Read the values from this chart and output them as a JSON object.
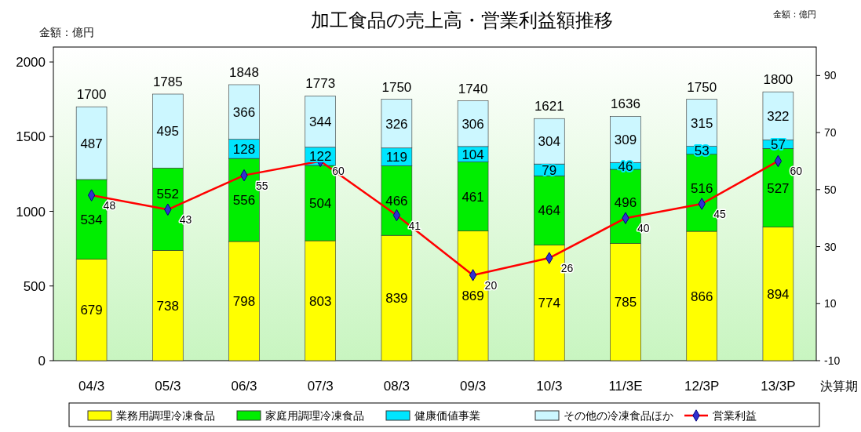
{
  "chart_data": {
    "type": "bar",
    "title": "加工食品の売上高・営業利益額推移",
    "ylabel": "金額：億円",
    "y2label": "金額：億円",
    "xlabel": "決算期",
    "categories": [
      "04/3",
      "05/3",
      "06/3",
      "07/3",
      "08/3",
      "09/3",
      "10/3",
      "11/3E",
      "12/3P",
      "13/3P"
    ],
    "stacked": true,
    "series": [
      {
        "name": "業務用調理冷凍食品",
        "color": "#ffff00",
        "values": [
          679,
          738,
          798,
          803,
          839,
          869,
          774,
          785,
          866,
          894
        ]
      },
      {
        "name": "家庭用調理冷凍食品",
        "color": "#00ee00",
        "values": [
          534,
          552,
          556,
          504,
          466,
          461,
          464,
          496,
          516,
          527
        ]
      },
      {
        "name": "健康価値事業",
        "color": "#00e5ff",
        "values": [
          null,
          null,
          128,
          122,
          119,
          104,
          79,
          46,
          53,
          57
        ]
      },
      {
        "name": "その他の冷凍食品ほか",
        "color": "#ccf7ff",
        "values": [
          487,
          495,
          366,
          344,
          326,
          306,
          304,
          309,
          315,
          322
        ]
      },
      {
        "name": "営業利益",
        "type": "line",
        "axis": "y2",
        "color": "#ff0000",
        "marker": "diamond",
        "values": [
          48,
          43,
          55,
          60,
          41,
          20,
          26,
          40,
          45,
          60
        ]
      }
    ],
    "totals": [
      "1700",
      "1785",
      "1848",
      "1773",
      "1750",
      "1740",
      "1621",
      "1636",
      "1750",
      "1800"
    ],
    "data_labels": true,
    "ylim": [
      0,
      2100
    ],
    "yticks": [
      0,
      500,
      1000,
      1500,
      2000
    ],
    "y2lim": [
      -10,
      100
    ],
    "y2ticks": [
      -10,
      10,
      30,
      50,
      70,
      90
    ],
    "grid": false,
    "legend": "bottom"
  }
}
